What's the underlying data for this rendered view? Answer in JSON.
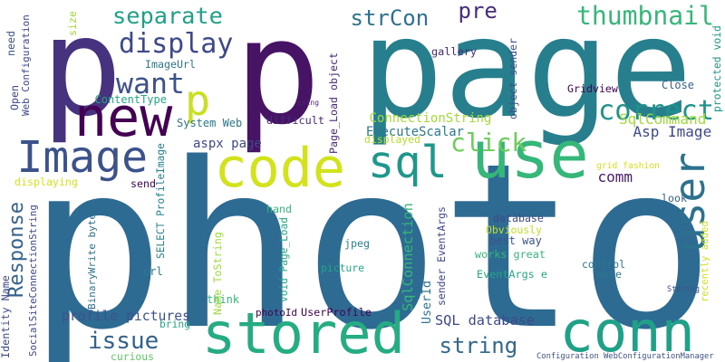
{
  "background": "#ffffff",
  "words": [
    {
      "text": "photo",
      "color": "#2e6b93"
    },
    {
      "text": "page",
      "color": "#277f8e"
    },
    {
      "text": "p",
      "color": "#46327e"
    },
    {
      "text": "p",
      "color": "#471365"
    },
    {
      "text": "conn",
      "color": "#1fa187"
    },
    {
      "text": "stored",
      "color": "#25ac82"
    },
    {
      "text": "code",
      "color": "#d2e21b"
    },
    {
      "text": "Image",
      "color": "#3b528b"
    },
    {
      "text": "new",
      "color": "#440154"
    },
    {
      "text": "use",
      "color": "#35b779"
    },
    {
      "text": "user",
      "color": "#2c728e"
    },
    {
      "text": "sql",
      "color": "#1f988b"
    },
    {
      "text": "p",
      "color": "#c8e020"
    },
    {
      "text": "want",
      "color": "#3b528b"
    },
    {
      "text": "display",
      "color": "#3e4989"
    },
    {
      "text": "separate",
      "color": "#1fa187"
    },
    {
      "text": "thumbnail",
      "color": "#35b779"
    },
    {
      "text": "click",
      "color": "#6ccd5a"
    },
    {
      "text": "correct",
      "color": "#20928c"
    },
    {
      "text": "issue",
      "color": "#33638d"
    },
    {
      "text": "string",
      "color": "#31688e"
    },
    {
      "text": "strCon",
      "color": "#2c728e"
    },
    {
      "text": "pre",
      "color": "#472d7b"
    },
    {
      "text": "SqlCommand",
      "color": "#a0da39"
    },
    {
      "text": "Asp Image",
      "color": "#3e4989"
    },
    {
      "text": "comm",
      "color": "#481a6c"
    },
    {
      "text": "profile pictures",
      "color": "#3b528b"
    },
    {
      "text": "SQL database",
      "color": "#3e4989"
    },
    {
      "text": "Response",
      "color": "#33638d"
    },
    {
      "text": "SqlConnection",
      "color": "#35b779"
    },
    {
      "text": "ConnectionString",
      "color": "#a5db36"
    },
    {
      "text": "ExecuteScalar",
      "color": "#2a788e"
    },
    {
      "text": "aspx page",
      "color": "#3e4989"
    },
    {
      "text": "Gridview",
      "color": "#440154"
    },
    {
      "text": "Close",
      "color": "#33638d"
    },
    {
      "text": "gallery",
      "color": "#482878"
    },
    {
      "text": "using",
      "color": "#482878"
    },
    {
      "text": "difficult",
      "color": "#482878"
    },
    {
      "text": "System Web",
      "color": "#2a788e"
    },
    {
      "text": "ImageUrl",
      "color": "#2a788e"
    },
    {
      "text": "ContentType",
      "color": "#22a884"
    },
    {
      "text": "displayed",
      "color": "#b5de2b"
    },
    {
      "text": "displaying",
      "color": "#d8e219"
    },
    {
      "text": "send",
      "color": "#440154"
    },
    {
      "text": "hand",
      "color": "#35b779"
    },
    {
      "text": "jpeg",
      "color": "#26828e"
    },
    {
      "text": "picture",
      "color": "#22a884"
    },
    {
      "text": "url",
      "color": "#2a788e"
    },
    {
      "text": "think",
      "color": "#35b779"
    },
    {
      "text": "bring",
      "color": "#22a884"
    },
    {
      "text": "photoId",
      "color": "#440154"
    },
    {
      "text": "UserProfile",
      "color": "#440154"
    },
    {
      "text": "curious",
      "color": "#5ec962"
    },
    {
      "text": "database",
      "color": "#3e4989"
    },
    {
      "text": "Obviously",
      "color": "#c2df23"
    },
    {
      "text": "best way",
      "color": "#3b528b"
    },
    {
      "text": "works great",
      "color": "#35b779"
    },
    {
      "text": "EventArgs e",
      "color": "#22a884"
    },
    {
      "text": "control",
      "color": "#2a788e"
    },
    {
      "text": "able",
      "color": "#2a788e"
    },
    {
      "text": "Storing",
      "color": "#3b528b"
    },
    {
      "text": "look",
      "color": "#33638d"
    },
    {
      "text": "grid fashion",
      "color": "#d8e219"
    },
    {
      "text": "recently added",
      "color": "#d0e11c"
    },
    {
      "text": "protected void",
      "color": "#1f988b"
    },
    {
      "text": "Configuration WebConfigurationManager",
      "color": "#3b528b"
    },
    {
      "text": "size",
      "color": "#9fda3a"
    },
    {
      "text": "need",
      "color": "#3b528b"
    },
    {
      "text": "Open",
      "color": "#3e4989"
    },
    {
      "text": "Web Configuration",
      "color": "#3e4989"
    },
    {
      "text": "Identity Name",
      "color": "#3e4989"
    },
    {
      "text": "SocialSiteConnectionString",
      "color": "#3e4989"
    },
    {
      "text": "BinaryWrite byte",
      "color": "#2c728e"
    },
    {
      "text": "SELECT ProfileImage",
      "color": "#26828e"
    },
    {
      "text": "Name ToString",
      "color": "#9fda3a"
    },
    {
      "text": "void Page_Load",
      "color": "#22a884"
    },
    {
      "text": "Page_Load object",
      "color": "#482878"
    },
    {
      "text": "sender EventArgs",
      "color": "#3e4989"
    },
    {
      "text": "UserId",
      "color": "#2c728e"
    },
    {
      "text": "object sender",
      "color": "#3b528b"
    }
  ]
}
